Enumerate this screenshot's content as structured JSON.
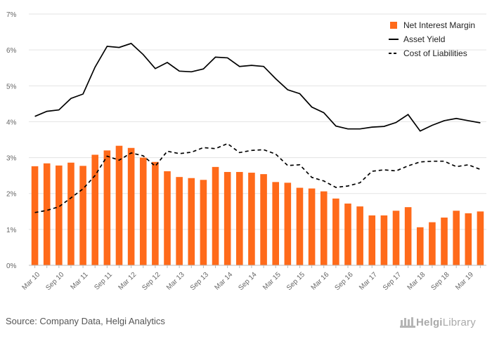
{
  "source": "Source: Company Data, Helgi Analytics",
  "logo": {
    "part1": "Helgi",
    "part2": "Library"
  },
  "colors": {
    "bar": "#ff6a1a",
    "asset_yield": "#000000",
    "cost": "#000000",
    "grid": "#e3e3e3",
    "axis_text": "#666666"
  },
  "chart_data": {
    "type": "bar",
    "ylim": [
      0,
      7
    ],
    "yticks": [
      "0%",
      "1%",
      "2%",
      "3%",
      "4%",
      "5%",
      "6%",
      "7%"
    ],
    "grid": true,
    "legend_position": "top-right",
    "categories": [
      "Mar 10",
      "Jun 10",
      "Sep 10",
      "Dec 10",
      "Mar 11",
      "Jun 11",
      "Sep 11",
      "Dec 11",
      "Mar 12",
      "Jun 12",
      "Sep 12",
      "Dec 12",
      "Mar 13",
      "Jun 13",
      "Sep 13",
      "Dec 13",
      "Mar 14",
      "Jun 14",
      "Sep 14",
      "Dec 14",
      "Mar 15",
      "Jun 15",
      "Sep 15",
      "Dec 15",
      "Mar 16",
      "Jun 16",
      "Sep 16",
      "Dec 16",
      "Mar 17",
      "Jun 17",
      "Sep 17",
      "Dec 17",
      "Mar 18",
      "Jun 18",
      "Sep 18",
      "Dec 18",
      "Mar 19",
      "Jun 19"
    ],
    "tick_labels": [
      "Mar 10",
      "Sep 10",
      "Mar 11",
      "Sep 11",
      "Mar 12",
      "Sep 12",
      "Mar 13",
      "Sep 13",
      "Mar 14",
      "Sep 14",
      "Mar 15",
      "Sep 15",
      "Mar 16",
      "Sep 16",
      "Mar 17",
      "Sep 17",
      "Mar 18",
      "Sep 18",
      "Mar 19"
    ],
    "series": [
      {
        "name": "Net Interest Margin",
        "kind": "bar",
        "values": [
          2.76,
          2.84,
          2.78,
          2.86,
          2.77,
          3.08,
          3.2,
          3.33,
          3.27,
          3.0,
          2.88,
          2.62,
          2.46,
          2.43,
          2.38,
          2.74,
          2.6,
          2.6,
          2.58,
          2.54,
          2.32,
          2.3,
          2.16,
          2.14,
          2.06,
          1.86,
          1.72,
          1.64,
          1.39,
          1.39,
          1.52,
          1.62,
          1.06,
          1.2,
          1.33,
          1.52,
          1.45,
          1.5
        ]
      },
      {
        "name": "Asset Yield",
        "kind": "line",
        "dash": "solid",
        "values": [
          4.15,
          4.29,
          4.33,
          4.65,
          4.77,
          5.52,
          6.1,
          6.07,
          6.18,
          5.87,
          5.48,
          5.65,
          5.41,
          5.39,
          5.47,
          5.8,
          5.78,
          5.54,
          5.57,
          5.54,
          5.2,
          4.89,
          4.78,
          4.41,
          4.25,
          3.88,
          3.8,
          3.8,
          3.85,
          3.87,
          3.98,
          4.2,
          3.74,
          3.9,
          4.03,
          4.09,
          4.03,
          3.97
        ]
      },
      {
        "name": "Cost of Liabilities",
        "kind": "line",
        "dash": "dashed",
        "values": [
          1.47,
          1.53,
          1.63,
          1.88,
          2.13,
          2.5,
          3.04,
          2.93,
          3.13,
          3.05,
          2.76,
          3.18,
          3.11,
          3.15,
          3.28,
          3.25,
          3.39,
          3.14,
          3.2,
          3.22,
          3.1,
          2.78,
          2.8,
          2.45,
          2.35,
          2.17,
          2.21,
          2.3,
          2.62,
          2.66,
          2.63,
          2.77,
          2.88,
          2.9,
          2.9,
          2.75,
          2.8,
          2.67
        ]
      }
    ]
  }
}
